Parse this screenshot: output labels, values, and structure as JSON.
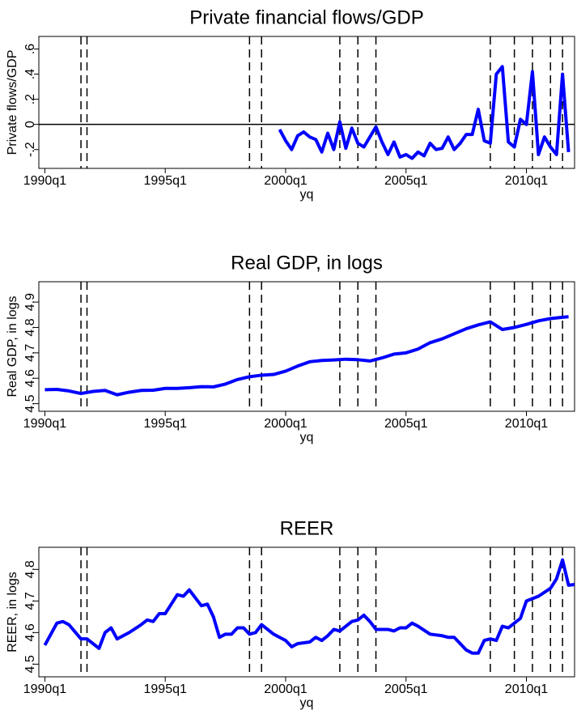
{
  "chart_data": [
    {
      "type": "line",
      "title": "Private financial flows/GDP",
      "xlabel": "yq",
      "ylabel": "Private flows/GDP",
      "x": [
        1999.75,
        2000,
        2000.25,
        2000.5,
        2000.75,
        2001,
        2001.25,
        2001.5,
        2001.75,
        2002,
        2002.25,
        2002.5,
        2002.75,
        2003,
        2003.25,
        2003.5,
        2003.75,
        2004,
        2004.25,
        2004.5,
        2004.75,
        2005,
        2005.25,
        2005.5,
        2005.75,
        2006,
        2006.25,
        2006.5,
        2006.75,
        2007,
        2007.25,
        2007.5,
        2007.75,
        2008,
        2008.25,
        2008.5,
        2008.75,
        2009,
        2009.25,
        2009.5,
        2009.75,
        2010,
        2010.25,
        2010.5,
        2010.75,
        2011,
        2011.25,
        2011.5,
        2011.75
      ],
      "series": [
        {
          "color": "#0000ff",
          "values": [
            -0.04,
            -0.13,
            -0.2,
            -0.09,
            -0.06,
            -0.1,
            -0.12,
            -0.22,
            -0.07,
            -0.2,
            0.02,
            -0.19,
            -0.03,
            -0.15,
            -0.18,
            -0.1,
            -0.02,
            -0.14,
            -0.24,
            -0.14,
            -0.26,
            -0.24,
            -0.27,
            -0.22,
            -0.25,
            -0.15,
            -0.2,
            -0.19,
            -0.1,
            -0.2,
            -0.15,
            -0.08,
            -0.08,
            0.12,
            -0.13,
            -0.15,
            0.4,
            0.46,
            -0.14,
            -0.18,
            0.04,
            0.0,
            0.42,
            -0.24,
            -0.1,
            -0.18,
            -0.24,
            0.4,
            -0.22
          ]
        }
      ],
      "xlim": [
        1989.75,
        2012
      ],
      "xticks": [
        {
          "value": 1990,
          "label": "1990q1"
        },
        {
          "value": 1995,
          "label": "1995q1"
        },
        {
          "value": 2000,
          "label": "2000q1"
        },
        {
          "value": 2005,
          "label": "2005q1"
        },
        {
          "value": 2010,
          "label": "2010q1"
        }
      ],
      "ylim": [
        -0.35,
        0.7
      ],
      "yticks": [
        {
          "value": -0.2,
          "label": "-.2"
        },
        0,
        {
          "value": 0.2,
          "label": ".2"
        },
        {
          "value": 0.4,
          "label": ".4"
        },
        {
          "value": 0.6,
          "label": ".6"
        }
      ],
      "reference_line": 0,
      "event_lines": [
        1991.5,
        1991.75,
        1998.5,
        1999,
        2002.25,
        2003,
        2003.75,
        2008.5,
        2009.5,
        2010.25,
        2011,
        2011.5
      ]
    },
    {
      "type": "line",
      "title": "Real GDP, in logs",
      "xlabel": "yq",
      "ylabel": "Real GDP, in logs",
      "x": [
        1990,
        1990.5,
        1991,
        1991.5,
        1992,
        1992.5,
        1993,
        1993.5,
        1994,
        1994.5,
        1995,
        1995.5,
        1996,
        1996.5,
        1997,
        1997.5,
        1998,
        1998.5,
        1999,
        1999.5,
        2000,
        2000.5,
        2001,
        2001.5,
        2002,
        2002.5,
        2003,
        2003.5,
        2004,
        2004.5,
        2005,
        2005.5,
        2006,
        2006.5,
        2007,
        2007.5,
        2008,
        2008.5,
        2009,
        2009.5,
        2010,
        2010.5,
        2011,
        2011.5,
        2011.75
      ],
      "series": [
        {
          "color": "#0000ff",
          "values": [
            4.555,
            4.556,
            4.55,
            4.54,
            4.548,
            4.552,
            4.535,
            4.545,
            4.552,
            4.553,
            4.56,
            4.56,
            4.563,
            4.567,
            4.566,
            4.577,
            4.595,
            4.606,
            4.612,
            4.615,
            4.628,
            4.648,
            4.665,
            4.67,
            4.672,
            4.675,
            4.673,
            4.668,
            4.68,
            4.695,
            4.7,
            4.715,
            4.74,
            4.755,
            4.775,
            4.795,
            4.81,
            4.822,
            4.792,
            4.8,
            4.812,
            4.826,
            4.835,
            4.84,
            4.842
          ]
        }
      ],
      "xlim": [
        1989.75,
        2012
      ],
      "xticks": [
        {
          "value": 1990,
          "label": "1990q1"
        },
        {
          "value": 1995,
          "label": "1995q1"
        },
        {
          "value": 2000,
          "label": "2000q1"
        },
        {
          "value": 2005,
          "label": "2005q1"
        },
        {
          "value": 2010,
          "label": "2010q1"
        }
      ],
      "ylim": [
        4.47,
        4.98
      ],
      "yticks": [
        4.5,
        4.6,
        4.7,
        4.8,
        4.9
      ],
      "event_lines": [
        1991.5,
        1991.75,
        1998.5,
        1999,
        2002.25,
        2003,
        2003.75,
        2008.5,
        2009.5,
        2010.25,
        2011,
        2011.5
      ]
    },
    {
      "type": "line",
      "title": "REER",
      "xlabel": "yq",
      "ylabel": "REER, in logs",
      "x": [
        1990,
        1990.5,
        1990.75,
        1991,
        1991.5,
        1991.75,
        1992.25,
        1992.5,
        1992.75,
        1993,
        1993.5,
        1994,
        1994.25,
        1994.5,
        1994.75,
        1995,
        1995.5,
        1995.75,
        1996,
        1996.5,
        1996.75,
        1997,
        1997.25,
        1997.5,
        1997.75,
        1998,
        1998.25,
        1998.5,
        1998.75,
        1999,
        1999.5,
        1999.75,
        2000,
        2000.25,
        2000.5,
        2001,
        2001.25,
        2001.5,
        2001.75,
        2002,
        2002.25,
        2002.5,
        2002.75,
        2003,
        2003.25,
        2003.5,
        2003.75,
        2004.25,
        2004.5,
        2004.75,
        2005,
        2005.25,
        2005.5,
        2006,
        2006.5,
        2006.75,
        2007,
        2007.25,
        2007.5,
        2007.75,
        2008,
        2008.25,
        2008.5,
        2008.75,
        2009,
        2009.25,
        2009.5,
        2009.75,
        2010,
        2010.5,
        2011,
        2011.25,
        2011.5,
        2011.75,
        2012
      ],
      "series": [
        {
          "color": "#0000ff",
          "values": [
            4.56,
            4.63,
            4.635,
            4.625,
            4.58,
            4.58,
            4.55,
            4.6,
            4.615,
            4.58,
            4.6,
            4.625,
            4.64,
            4.635,
            4.66,
            4.66,
            4.72,
            4.715,
            4.735,
            4.685,
            4.69,
            4.65,
            4.585,
            4.595,
            4.595,
            4.615,
            4.615,
            4.595,
            4.6,
            4.625,
            4.595,
            4.585,
            4.575,
            4.555,
            4.565,
            4.57,
            4.585,
            4.575,
            4.59,
            4.61,
            4.605,
            4.62,
            4.635,
            4.64,
            4.655,
            4.635,
            4.61,
            4.61,
            4.605,
            4.615,
            4.615,
            4.63,
            4.62,
            4.595,
            4.59,
            4.585,
            4.585,
            4.565,
            4.545,
            4.535,
            4.535,
            4.575,
            4.58,
            4.575,
            4.62,
            4.615,
            4.63,
            4.645,
            4.7,
            4.715,
            4.74,
            4.77,
            4.83,
            4.75,
            4.752
          ]
        }
      ],
      "xlim": [
        1989.75,
        2012
      ],
      "xticks": [
        {
          "value": 1990,
          "label": "1990q1"
        },
        {
          "value": 1995,
          "label": "1995q1"
        },
        {
          "value": 2000,
          "label": "2000q1"
        },
        {
          "value": 2005,
          "label": "2005q1"
        },
        {
          "value": 2010,
          "label": "2010q1"
        }
      ],
      "ylim": [
        4.46,
        4.87
      ],
      "yticks": [
        4.5,
        4.6,
        4.7,
        4.8
      ],
      "event_lines": [
        1991.5,
        1991.75,
        1998.5,
        1999,
        2002.25,
        2003,
        2003.75,
        2008.5,
        2009.5,
        2010.25,
        2011,
        2011.5
      ]
    }
  ]
}
